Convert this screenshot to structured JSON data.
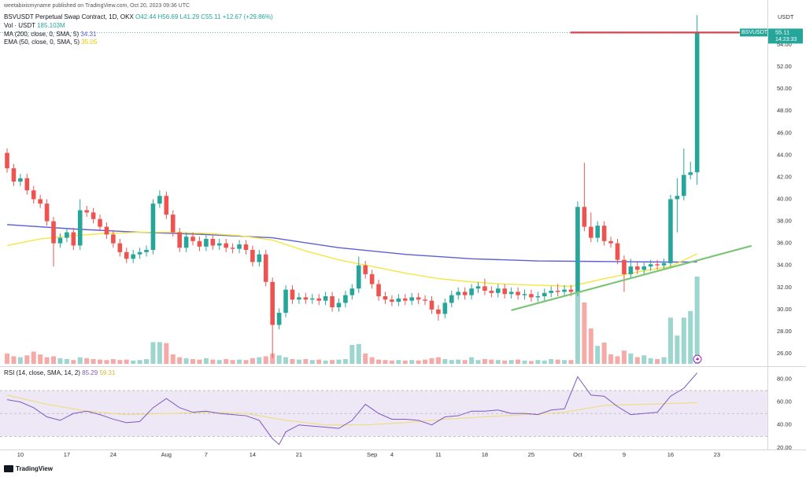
{
  "header": "weetabixismyname published on TradingView.com, Oct 20, 2023 09:36 UTC",
  "footer": "TradingView",
  "chart_data": [
    {
      "type": "candlestick",
      "title": "BSVUSDT Perpetual Swap Contract, 1D, OKX",
      "ohlc_labels": [
        "O42.44",
        "H56.69",
        "L41.29",
        "C55.11"
      ],
      "change": "+12.67 (+29.86%)",
      "axis_label": "USDT",
      "symbol_tag": "BSVUSDT.P",
      "countdown": "14:23:33",
      "up_color": "#26a69a",
      "down_color": "#ef5350",
      "open": [
        44.2,
        42.8,
        41.6,
        41.9,
        40.8,
        40.0,
        39.6,
        38.0,
        36.0,
        36.5,
        37.0,
        35.8,
        39.0,
        38.8,
        38.2,
        37.5,
        36.8,
        36.0,
        35.2,
        34.6,
        35.0,
        35.2,
        35.4,
        39.6,
        40.3,
        38.6,
        37.0,
        35.6,
        36.6,
        36.2,
        35.7,
        36.4,
        35.8,
        36.0,
        35.6,
        35.5,
        35.9,
        35.4,
        34.3,
        35.0,
        32.5,
        28.6,
        29.7,
        31.8,
        30.9,
        31.1,
        30.9,
        31.0,
        30.8,
        31.2,
        30.2,
        30.6,
        31.3,
        31.9,
        34.0,
        33.2,
        32.3,
        31.2,
        30.9,
        30.7,
        31.0,
        30.8,
        31.1,
        30.9,
        30.8,
        30.0,
        29.6,
        30.6,
        31.3,
        31.6,
        31.3,
        31.9,
        32.1,
        31.7,
        31.5,
        31.9,
        31.4,
        31.6,
        31.3,
        31.4,
        31.1,
        31.2,
        31.5,
        31.7,
        31.6,
        31.8,
        31.6,
        39.3,
        37.5,
        36.5,
        37.6,
        36.2,
        36.0,
        34.5,
        33.2,
        33.9,
        33.6,
        33.9,
        34.1,
        34.0,
        34.2,
        40.0,
        40.3,
        42.2,
        42.44
      ],
      "high": [
        44.6,
        43.2,
        42.3,
        42.3,
        41.2,
        40.4,
        40.0,
        38.4,
        36.9,
        37.4,
        37.4,
        40.0,
        39.4,
        39.2,
        38.6,
        37.9,
        37.2,
        36.4,
        35.6,
        35.4,
        35.6,
        35.8,
        40.0,
        40.8,
        40.7,
        39.0,
        37.4,
        37.0,
        37.0,
        36.6,
        36.8,
        36.8,
        36.4,
        36.4,
        36.0,
        36.3,
        36.3,
        35.8,
        35.4,
        35.4,
        32.9,
        30.1,
        32.2,
        32.2,
        31.5,
        31.5,
        31.4,
        31.4,
        31.6,
        31.6,
        31.0,
        31.7,
        32.3,
        34.8,
        34.4,
        33.6,
        32.7,
        31.6,
        31.3,
        31.4,
        31.4,
        31.5,
        31.5,
        31.3,
        31.2,
        30.4,
        31.0,
        31.7,
        32.0,
        32.0,
        32.3,
        32.5,
        32.8,
        32.1,
        32.3,
        32.3,
        32.0,
        32.0,
        31.8,
        31.8,
        31.6,
        31.9,
        32.1,
        32.3,
        32.2,
        32.2,
        39.8,
        43.3,
        38.8,
        38.0,
        38.0,
        36.6,
        36.4,
        34.9,
        34.6,
        34.3,
        34.3,
        34.5,
        34.5,
        34.6,
        40.4,
        41.9,
        44.6,
        43.4,
        56.69
      ],
      "low": [
        42.4,
        41.2,
        41.2,
        40.4,
        39.6,
        39.2,
        37.6,
        33.9,
        35.6,
        36.1,
        35.4,
        35.4,
        38.4,
        37.8,
        37.1,
        36.4,
        35.6,
        34.8,
        34.2,
        34.2,
        34.6,
        34.8,
        35.0,
        39.2,
        38.2,
        36.6,
        35.2,
        35.2,
        35.8,
        35.3,
        35.3,
        35.4,
        35.4,
        35.2,
        35.1,
        35.1,
        35.0,
        33.9,
        33.9,
        32.1,
        25.6,
        28.2,
        29.3,
        30.5,
        30.5,
        30.5,
        30.5,
        30.4,
        30.4,
        29.8,
        29.8,
        30.2,
        30.9,
        31.5,
        32.8,
        31.9,
        30.8,
        30.5,
        30.3,
        30.3,
        30.4,
        30.4,
        30.5,
        30.4,
        29.6,
        29.0,
        29.2,
        30.2,
        30.9,
        30.9,
        30.9,
        31.5,
        31.3,
        31.1,
        31.1,
        31.0,
        31.0,
        30.9,
        30.9,
        30.7,
        30.7,
        30.8,
        31.1,
        31.2,
        31.2,
        31.2,
        31.2,
        37.1,
        36.1,
        36.1,
        35.8,
        35.6,
        34.1,
        31.6,
        32.8,
        33.2,
        33.2,
        33.5,
        33.6,
        33.6,
        33.8,
        37.0,
        39.9,
        41.8,
        41.29
      ],
      "close": [
        42.8,
        41.6,
        41.9,
        40.8,
        40.0,
        39.6,
        38.0,
        36.0,
        36.5,
        37.0,
        35.8,
        39.0,
        38.8,
        38.2,
        37.5,
        36.8,
        36.0,
        35.2,
        34.6,
        35.0,
        35.2,
        35.4,
        39.6,
        40.3,
        38.6,
        37.0,
        35.6,
        36.6,
        36.2,
        35.7,
        36.4,
        35.8,
        36.0,
        35.6,
        35.5,
        35.9,
        35.4,
        34.3,
        35.0,
        32.5,
        28.6,
        29.7,
        31.8,
        30.9,
        31.1,
        30.9,
        31.0,
        30.8,
        31.2,
        30.2,
        30.6,
        31.3,
        31.9,
        34.0,
        33.2,
        32.3,
        31.2,
        30.9,
        30.7,
        31.0,
        30.8,
        31.1,
        30.9,
        30.8,
        30.0,
        29.6,
        30.6,
        31.3,
        31.6,
        31.3,
        31.9,
        32.1,
        31.7,
        31.5,
        31.9,
        31.4,
        31.6,
        31.3,
        31.4,
        31.1,
        31.2,
        31.5,
        31.7,
        31.6,
        31.8,
        31.6,
        39.3,
        37.5,
        36.5,
        37.6,
        36.2,
        36.0,
        34.5,
        33.2,
        33.9,
        33.6,
        33.9,
        34.1,
        34.0,
        34.2,
        40.0,
        40.3,
        42.2,
        42.44,
        55.11
      ],
      "volume": {
        "name": "Vol · USDT",
        "value_label": "185.103M",
        "up_color": "#9dd5cf",
        "down_color": "#f5aaa8",
        "lim": [
          0,
          305
        ],
        "values": [
          22,
          16,
          14,
          18,
          26,
          20,
          14,
          16,
          12,
          10,
          8,
          14,
          12,
          10,
          9,
          8,
          10,
          8,
          9,
          7,
          8,
          10,
          46,
          46,
          44,
          20,
          14,
          12,
          10,
          9,
          12,
          9,
          8,
          10,
          8,
          9,
          8,
          12,
          14,
          16,
          22,
          18,
          14,
          10,
          9,
          10,
          8,
          9,
          7,
          8,
          9,
          10,
          40,
          42,
          22,
          14,
          9,
          8,
          7,
          8,
          7,
          8,
          7,
          9,
          12,
          14,
          10,
          8,
          9,
          8,
          14,
          8,
          10,
          9,
          8,
          7,
          8,
          9,
          7,
          6,
          8,
          7,
          10,
          9,
          8,
          8,
          155,
          130,
          75,
          38,
          45,
          20,
          16,
          28,
          22,
          14,
          18,
          12,
          10,
          14,
          98,
          60,
          98,
          112,
          185.103
        ]
      },
      "overlays": [
        {
          "name": "MA (200, close, 0, SMA, 5)",
          "color": "#5c5fd6",
          "x": [
            0,
            10,
            20,
            30,
            40,
            50,
            60,
            70,
            80,
            90,
            100,
            104
          ],
          "values": [
            37.7,
            37.3,
            37.0,
            36.8,
            36.5,
            35.6,
            35.0,
            34.6,
            34.4,
            34.35,
            34.3,
            34.31
          ]
        },
        {
          "name": "EMA (50, close, 0, SMA, 5)",
          "color": "#f5e642",
          "x": [
            0,
            5,
            10,
            15,
            20,
            25,
            30,
            35,
            40,
            45,
            50,
            55,
            60,
            65,
            70,
            75,
            80,
            85,
            90,
            95,
            100,
            104
          ],
          "values": [
            35.8,
            36.4,
            36.7,
            36.9,
            37.0,
            37.0,
            36.9,
            36.7,
            36.3,
            35.3,
            34.5,
            33.9,
            33.3,
            32.8,
            32.5,
            32.3,
            32.2,
            32.1,
            32.8,
            33.4,
            33.9,
            35.05
          ]
        }
      ],
      "drawings": [
        {
          "color": "#e53945",
          "x": [
            84.9,
            110.4
          ],
          "values": [
            55.11,
            55.11
          ]
        },
        {
          "color": "#7cc576",
          "x": [
            76.0,
            112.2
          ],
          "values": [
            29.93,
            35.77
          ]
        }
      ],
      "xlim": [
        -1.07,
        114.6
      ],
      "ylim": [
        24.93,
        58.06
      ],
      "grid": false,
      "yticks": [
        {
          "value": 26,
          "label": "26.00"
        },
        {
          "value": 28,
          "label": "28.00"
        },
        {
          "value": 30,
          "label": "30.00"
        },
        {
          "value": 32,
          "label": "32.00"
        },
        {
          "value": 34,
          "label": "34.00"
        },
        {
          "value": 36,
          "label": "36.00"
        },
        {
          "value": 38,
          "label": "38.00"
        },
        {
          "value": 40,
          "label": "40.00"
        },
        {
          "value": 42,
          "label": "42.00"
        },
        {
          "value": 44,
          "label": "44.00"
        },
        {
          "value": 46,
          "label": "46.00"
        },
        {
          "value": 48,
          "label": "48.00"
        },
        {
          "value": 50,
          "label": "50.00"
        },
        {
          "value": 52,
          "label": "52.00"
        },
        {
          "value": 54,
          "label": "54.00"
        }
      ],
      "xticks": [
        {
          "value": 2,
          "label": "10"
        },
        {
          "value": 9,
          "label": "17"
        },
        {
          "value": 16,
          "label": "24"
        },
        {
          "value": 24,
          "label": "Aug"
        },
        {
          "value": 30,
          "label": "7"
        },
        {
          "value": 37,
          "label": "14"
        },
        {
          "value": 44,
          "label": "21"
        },
        {
          "value": 55,
          "label": "Sep"
        },
        {
          "value": 58,
          "label": "4"
        },
        {
          "value": 65,
          "label": "11"
        },
        {
          "value": 72,
          "label": "18"
        },
        {
          "value": 79,
          "label": "25"
        },
        {
          "value": 86,
          "label": "Oct"
        },
        {
          "value": 93,
          "label": "9"
        },
        {
          "value": 100,
          "label": "16"
        },
        {
          "value": 107,
          "label": "23"
        }
      ]
    },
    {
      "type": "line",
      "title": "RSI (14, close, SMA, 14, 2)",
      "series": [
        {
          "color": "#7e57c2",
          "x": [
            0,
            2,
            4,
            6,
            8,
            10,
            12,
            14,
            16,
            18,
            20,
            22,
            24,
            26,
            28,
            30,
            32,
            34,
            36,
            38,
            40,
            41,
            42,
            44,
            46,
            48,
            50,
            52,
            54,
            56,
            58,
            60,
            62,
            64,
            66,
            68,
            70,
            72,
            74,
            76,
            78,
            80,
            82,
            84,
            86,
            88,
            90,
            92,
            94,
            96,
            98,
            100,
            102,
            104
          ],
          "values": [
            62,
            60,
            55,
            47,
            44,
            50,
            52,
            49,
            45,
            42,
            43,
            55,
            63,
            55,
            51,
            52,
            50,
            49,
            48,
            44,
            28,
            23,
            34,
            40,
            39,
            38,
            37,
            44,
            58,
            50,
            45,
            45,
            44,
            40,
            47,
            48,
            52,
            52,
            53,
            50,
            50,
            49,
            53,
            54,
            82,
            66,
            65,
            56,
            49,
            50,
            51,
            65,
            72,
            85.29
          ]
        },
        {
          "color": "#f0dc6e",
          "x": [
            0,
            6,
            12,
            18,
            24,
            30,
            36,
            42,
            48,
            54,
            60,
            66,
            72,
            78,
            84,
            90,
            96,
            102,
            104
          ],
          "values": [
            66,
            58,
            52,
            49,
            50,
            51,
            50,
            44,
            40,
            40,
            42,
            45,
            47,
            49,
            51,
            57,
            58,
            59,
            59.31
          ]
        }
      ],
      "band": [
        30,
        70
      ],
      "band_color": "#ede7f6",
      "levels": [
        30,
        50,
        70
      ],
      "ylim": [
        18.6,
        89.8
      ],
      "yticks": [
        {
          "value": 20,
          "label": "20.00"
        },
        {
          "value": 40,
          "label": "40.00"
        },
        {
          "value": 60,
          "label": "60.00"
        },
        {
          "value": 80,
          "label": "80.00"
        }
      ]
    }
  ]
}
